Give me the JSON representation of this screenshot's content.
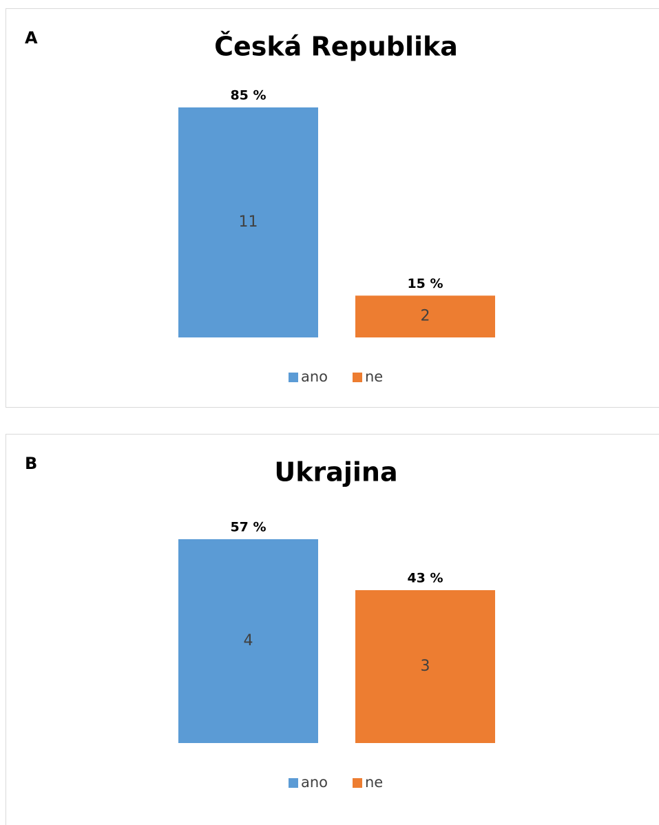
{
  "chart_data": [
    {
      "type": "bar",
      "panel": "A",
      "title": "Česká Republika",
      "categories": [
        "ano",
        "ne"
      ],
      "colors": [
        "#5b9bd5",
        "#ed7d31"
      ],
      "values": [
        11,
        2
      ],
      "percent_labels": [
        "85 %",
        "15 %"
      ]
    },
    {
      "type": "bar",
      "panel": "B",
      "title": "Ukrajina",
      "categories": [
        "ano",
        "ne"
      ],
      "colors": [
        "#5b9bd5",
        "#ed7d31"
      ],
      "values": [
        4,
        3
      ],
      "percent_labels": [
        "57 %",
        "43 %"
      ]
    }
  ]
}
